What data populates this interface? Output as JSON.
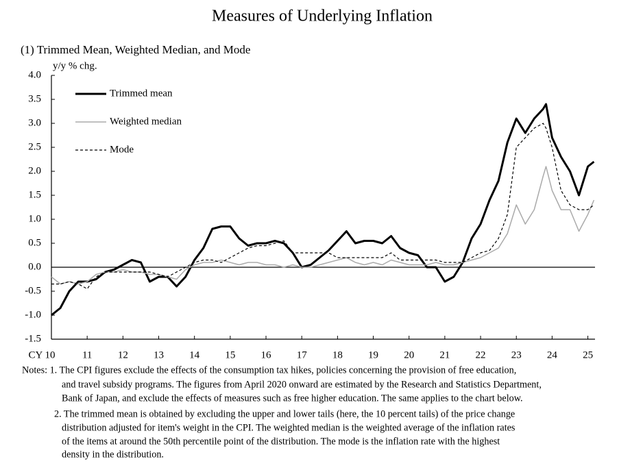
{
  "chart_data": {
    "type": "line",
    "title": "Measures of Underlying Inflation",
    "subtitle": "(1) Trimmed Mean, Weighted Median, and Mode",
    "y_label": "y/y % chg.",
    "x": [
      2010,
      2010.25,
      2010.5,
      2010.75,
      2011,
      2011.25,
      2011.5,
      2011.75,
      2012,
      2012.25,
      2012.5,
      2012.75,
      2013,
      2013.25,
      2013.5,
      2013.75,
      2014,
      2014.25,
      2014.5,
      2014.75,
      2015,
      2015.25,
      2015.5,
      2015.75,
      2016,
      2016.25,
      2016.5,
      2016.75,
      2017,
      2017.25,
      2017.5,
      2017.75,
      2018,
      2018.25,
      2018.5,
      2018.75,
      2019,
      2019.25,
      2019.5,
      2019.75,
      2020,
      2020.25,
      2020.5,
      2020.75,
      2021,
      2021.25,
      2021.5,
      2021.75,
      2022,
      2022.25,
      2022.5,
      2022.75,
      2023,
      2023.25,
      2023.5,
      2023.75,
      2023.83,
      2024,
      2024.25,
      2024.5,
      2024.75,
      2025,
      2025.17
    ],
    "series": [
      {
        "name": "Trimmed mean",
        "color": "#000000",
        "width": 3,
        "dash": false,
        "values": [
          -1.0,
          -0.85,
          -0.5,
          -0.3,
          -0.3,
          -0.25,
          -0.1,
          -0.05,
          0.05,
          0.15,
          0.1,
          -0.3,
          -0.2,
          -0.2,
          -0.4,
          -0.2,
          0.15,
          0.4,
          0.8,
          0.85,
          0.85,
          0.6,
          0.45,
          0.5,
          0.5,
          0.55,
          0.5,
          0.3,
          0.0,
          0.05,
          0.2,
          0.35,
          0.55,
          0.75,
          0.5,
          0.55,
          0.55,
          0.5,
          0.65,
          0.4,
          0.3,
          0.25,
          0.0,
          0.0,
          -0.3,
          -0.2,
          0.1,
          0.6,
          0.9,
          1.4,
          1.8,
          2.6,
          3.1,
          2.8,
          3.1,
          3.3,
          3.4,
          2.7,
          2.3,
          2.0,
          1.5,
          2.1,
          2.2
        ]
      },
      {
        "name": "Weighted median",
        "color": "#aaaaaa",
        "width": 1.5,
        "dash": false,
        "values": [
          -0.2,
          -0.35,
          -0.3,
          -0.35,
          -0.3,
          -0.15,
          -0.1,
          -0.1,
          -0.05,
          -0.1,
          -0.1,
          -0.15,
          -0.15,
          -0.2,
          -0.25,
          -0.05,
          0.05,
          0.1,
          0.1,
          0.15,
          0.1,
          0.05,
          0.1,
          0.1,
          0.05,
          0.05,
          0.0,
          0.05,
          0.0,
          0.0,
          0.05,
          0.1,
          0.15,
          0.2,
          0.1,
          0.05,
          0.1,
          0.05,
          0.15,
          0.1,
          0.05,
          0.05,
          0.05,
          0.1,
          0.05,
          0.05,
          0.1,
          0.15,
          0.2,
          0.3,
          0.4,
          0.7,
          1.3,
          0.9,
          1.2,
          1.9,
          2.1,
          1.6,
          1.2,
          1.2,
          0.75,
          1.1,
          1.4
        ]
      },
      {
        "name": "Mode",
        "color": "#000000",
        "width": 1.2,
        "dash": true,
        "values": [
          -0.35,
          -0.35,
          -0.3,
          -0.35,
          -0.45,
          -0.2,
          -0.1,
          -0.1,
          -0.1,
          -0.1,
          -0.1,
          -0.1,
          -0.15,
          -0.2,
          -0.1,
          0.0,
          0.1,
          0.15,
          0.15,
          0.1,
          0.2,
          0.3,
          0.4,
          0.45,
          0.45,
          0.5,
          0.55,
          0.3,
          0.3,
          0.3,
          0.3,
          0.3,
          0.2,
          0.2,
          0.2,
          0.2,
          0.2,
          0.2,
          0.3,
          0.15,
          0.15,
          0.15,
          0.15,
          0.15,
          0.1,
          0.1,
          0.1,
          0.2,
          0.3,
          0.35,
          0.6,
          1.1,
          2.5,
          2.7,
          2.9,
          3.0,
          2.9,
          2.5,
          1.6,
          1.3,
          1.2,
          1.2,
          1.3
        ]
      }
    ],
    "xlim": [
      2010,
      2025.2
    ],
    "xticks": [
      {
        "value": 2010,
        "label": "CY 10"
      },
      {
        "value": 2011,
        "label": "11"
      },
      {
        "value": 2012,
        "label": "12"
      },
      {
        "value": 2013,
        "label": "13"
      },
      {
        "value": 2014,
        "label": "14"
      },
      {
        "value": 2015,
        "label": "15"
      },
      {
        "value": 2016,
        "label": "16"
      },
      {
        "value": 2017,
        "label": "17"
      },
      {
        "value": 2018,
        "label": "18"
      },
      {
        "value": 2019,
        "label": "19"
      },
      {
        "value": 2020,
        "label": "20"
      },
      {
        "value": 2021,
        "label": "21"
      },
      {
        "value": 2022,
        "label": "22"
      },
      {
        "value": 2023,
        "label": "23"
      },
      {
        "value": 2024,
        "label": "24"
      },
      {
        "value": 2025,
        "label": "25"
      }
    ],
    "ylim": [
      -1.5,
      4.0
    ],
    "yticks": [
      -1.5,
      {
        "value": -1.0,
        "label": "-1.0"
      },
      -0.5,
      {
        "value": 0,
        "label": "0.0"
      },
      0.5,
      {
        "value": 1.0,
        "label": "1.0"
      },
      1.5,
      {
        "value": 2.0,
        "label": "2.0"
      },
      2.5,
      {
        "value": 3.0,
        "label": "3.0"
      },
      3.5,
      {
        "value": 4.0,
        "label": "4.0"
      }
    ],
    "grid": false,
    "legend": "upper left"
  },
  "notes": [
    "Notes: 1. The CPI figures exclude the effects of the consumption tax hikes, policies concerning the provision of free education,",
    "and travel subsidy programs. The figures from April 2020 onward are estimated by the Research and Statistics Department,",
    "Bank of Japan, and exclude the effects of measures such as free higher education. The same applies to the chart below.",
    "2. The trimmed mean is obtained by excluding the upper and lower tails (here, the 10 percent tails) of the price change",
    "distribution adjusted for item's weight in the CPI. The weighted median is the weighted average of the inflation rates",
    "of the items at around the 50th percentile point of the distribution. The mode is the inflation rate with the highest",
    "density in the distribution."
  ]
}
